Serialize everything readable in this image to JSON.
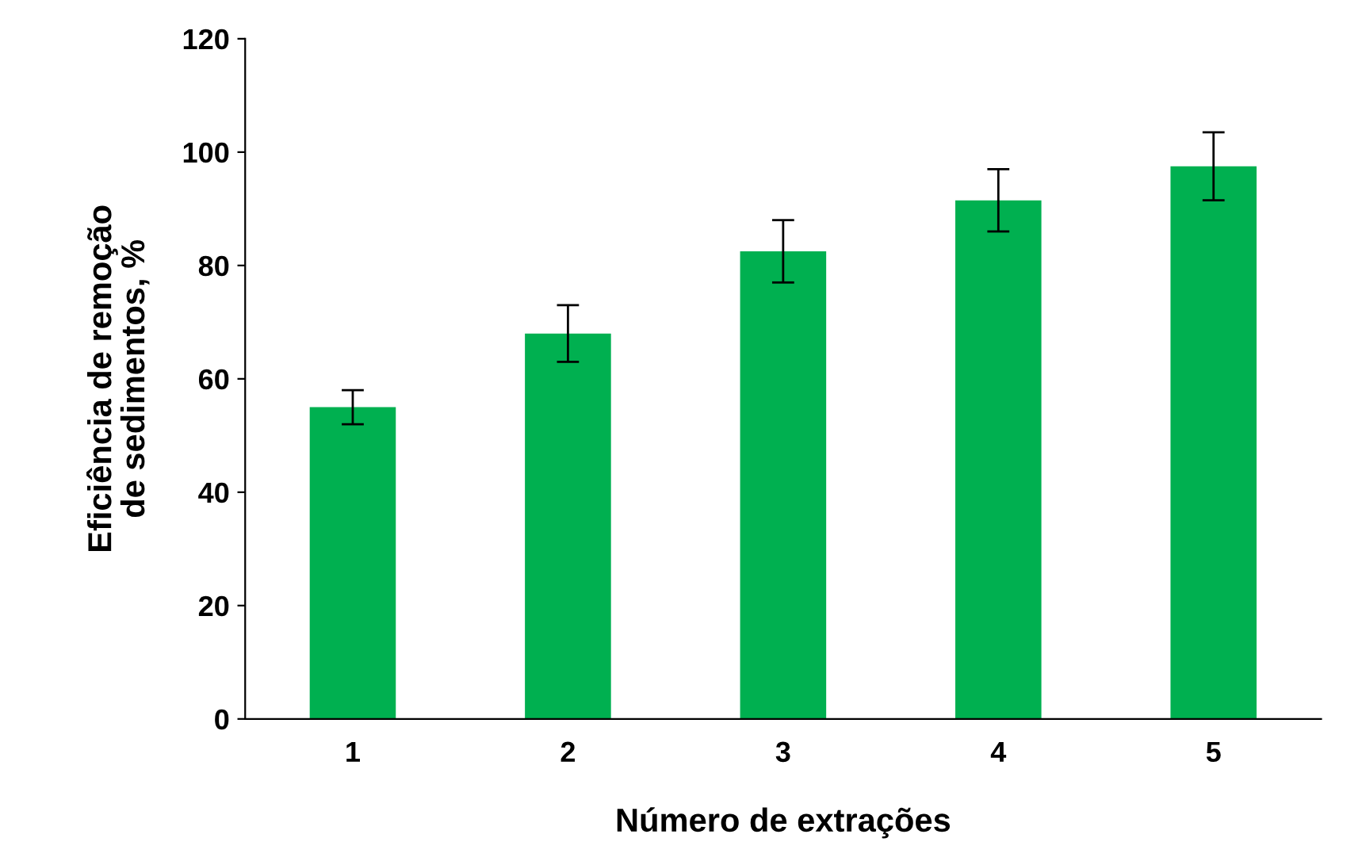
{
  "chart_data": {
    "type": "bar",
    "xlabel": "Número de extrações",
    "ylabel": "Eficiência de remoção\nde sedimentos, %",
    "categories": [
      "1",
      "2",
      "3",
      "4",
      "5"
    ],
    "series": [
      {
        "color": "#00b050",
        "values": [
          55,
          68,
          82.5,
          91.5,
          97.5
        ],
        "errors": [
          3,
          5,
          5.5,
          5.5,
          6
        ]
      }
    ],
    "ylim": [
      0,
      120
    ],
    "yticks": [
      0,
      20,
      40,
      60,
      80,
      100,
      120
    ],
    "grid": false,
    "legend": false
  }
}
